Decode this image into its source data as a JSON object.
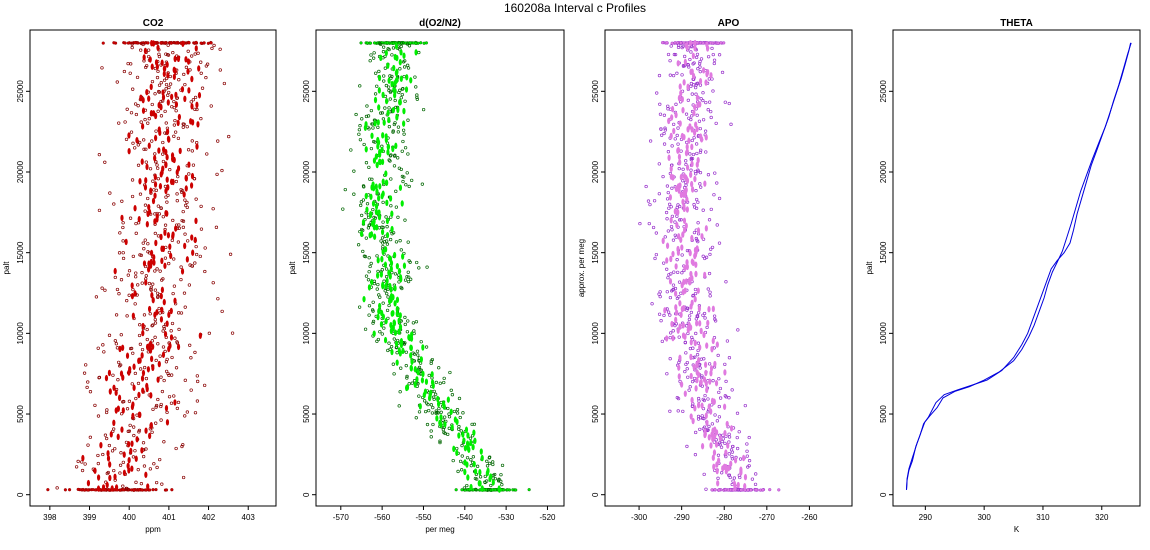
{
  "figure": {
    "title": "160208a   Interval c Profiles"
  },
  "chart_data": [
    {
      "type": "scatter",
      "title": "CO2",
      "xlabel": "ppm",
      "ylabel": "palt",
      "xlim": [
        397.5,
        403.7
      ],
      "ylim": [
        -700,
        28800
      ],
      "xticks": [
        398,
        399,
        400,
        401,
        402,
        403
      ],
      "yticks": [
        0,
        5000,
        10000,
        15000,
        20000,
        25000
      ],
      "grid": false,
      "point_color": "#cc0000",
      "profile": [
        [
          0,
          399.6
        ],
        [
          2500,
          399.8
        ],
        [
          5000,
          400.3
        ],
        [
          7500,
          400.2
        ],
        [
          10000,
          400.8
        ],
        [
          12500,
          400.5
        ],
        [
          15000,
          400.9
        ],
        [
          17500,
          400.7
        ],
        [
          20000,
          401.0
        ],
        [
          22500,
          400.9
        ],
        [
          25000,
          401.1
        ],
        [
          28000,
          401.0
        ]
      ],
      "spread": 0.9
    },
    {
      "type": "scatter",
      "title": "d(O2/N2)",
      "xlabel": "per meg",
      "ylabel": "palt",
      "xlim": [
        -576,
        -516
      ],
      "ylim": [
        -700,
        28800
      ],
      "xticks": [
        -570,
        -560,
        -550,
        -540,
        -530,
        -520
      ],
      "yticks": [
        0,
        5000,
        10000,
        15000,
        20000,
        25000
      ],
      "grid": false,
      "point_color": "#00ee00",
      "profile": [
        [
          0,
          -533
        ],
        [
          2500,
          -539
        ],
        [
          5000,
          -546
        ],
        [
          7500,
          -551
        ],
        [
          10000,
          -556
        ],
        [
          12500,
          -560
        ],
        [
          15000,
          -558
        ],
        [
          17500,
          -562
        ],
        [
          20000,
          -559
        ],
        [
          22500,
          -560
        ],
        [
          25000,
          -557
        ],
        [
          28000,
          -557
        ]
      ],
      "spread": 4.5
    },
    {
      "type": "scatter",
      "title": "APO",
      "xlabel": "",
      "ylabel": "approx. per meg",
      "xlim": [
        -308,
        -250
      ],
      "ylim": [
        -700,
        28800
      ],
      "xticks": [
        -300,
        -290,
        -280,
        -270,
        -260
      ],
      "yticks": [
        0,
        5000,
        10000,
        15000,
        20000,
        25000
      ],
      "grid": false,
      "point_color": "#e07ae0",
      "profile": [
        [
          0,
          -276
        ],
        [
          2500,
          -280
        ],
        [
          5000,
          -284
        ],
        [
          7500,
          -286
        ],
        [
          10000,
          -288
        ],
        [
          12500,
          -289
        ],
        [
          15000,
          -289
        ],
        [
          17500,
          -290
        ],
        [
          20000,
          -289
        ],
        [
          22500,
          -289
        ],
        [
          25000,
          -287
        ],
        [
          28000,
          -287
        ]
      ],
      "spread": 5
    },
    {
      "type": "line",
      "title": "THETA",
      "xlabel": "K",
      "ylabel": "palt",
      "xlim": [
        284.5,
        326.5
      ],
      "ylim": [
        -700,
        28800
      ],
      "xticks": [
        290,
        300,
        310,
        320
      ],
      "yticks": [
        0,
        5000,
        10000,
        15000,
        20000,
        25000
      ],
      "grid": false,
      "line_color": "#0000dd",
      "series": [
        {
          "x": [
            286.8,
            286.9,
            287.2,
            287.8,
            288.6,
            289.3,
            289.9,
            290.8,
            292.0,
            293.0,
            295.0,
            297.5,
            300.0,
            302.5,
            305.0,
            306.4,
            307.6,
            308.5,
            309.4,
            310.2,
            310.8,
            311.6,
            312.4,
            313.3,
            314.1,
            314.8,
            315.6,
            316.4,
            317.4,
            318.4,
            319.6,
            320.6,
            321.5,
            322.4,
            323.3,
            324.0,
            324.6,
            324.9
          ],
          "y": [
            300,
            1000,
            1600,
            2300,
            3200,
            3900,
            4500,
            4900,
            5400,
            6000,
            6400,
            6700,
            7100,
            7600,
            8300,
            9000,
            9800,
            10500,
            11400,
            12200,
            13000,
            13800,
            14400,
            15100,
            16000,
            16800,
            17800,
            18800,
            19800,
            20800,
            21900,
            22800,
            23800,
            24800,
            25800,
            26700,
            27500,
            28000
          ]
        },
        {
          "x": [
            286.8,
            286.9,
            287.2,
            287.8,
            288.4,
            289.1,
            289.7,
            290.5,
            291.8,
            293.2,
            295.5,
            298.0,
            300.5,
            303.0,
            305.0,
            306.4,
            307.4,
            308.3,
            309.2,
            310.0,
            310.7,
            311.4,
            312.4,
            313.6,
            314.6,
            315.2,
            315.8,
            316.6,
            317.4,
            318.2,
            319.2,
            320.2,
            321.2,
            322.0,
            322.9,
            323.7,
            324.4,
            325.0
          ],
          "y": [
            300,
            900,
            1500,
            2100,
            3000,
            3700,
            4400,
            4800,
            5700,
            6200,
            6500,
            6800,
            7100,
            7700,
            8500,
            9300,
            10000,
            10900,
            11800,
            12600,
            13300,
            14000,
            14500,
            15000,
            15600,
            16400,
            17400,
            18400,
            19400,
            20400,
            21400,
            22400,
            23400,
            24400,
            25400,
            26400,
            27300,
            28000
          ]
        }
      ]
    }
  ]
}
